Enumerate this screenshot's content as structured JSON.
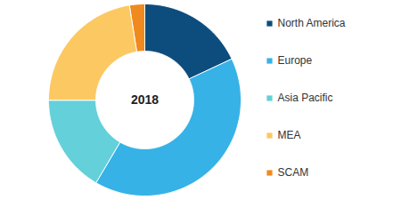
{
  "chart_data": {
    "type": "pie",
    "title": "2018",
    "categories": [
      "North America",
      "Europe",
      "Asia Pacific",
      "MEA",
      "SCAM"
    ],
    "values": [
      18,
      40.5,
      16.5,
      22.5,
      2.5
    ],
    "colors": [
      "#0d4d7e",
      "#36b2e6",
      "#63d0da",
      "#fcc862",
      "#f08a1e"
    ],
    "legend": "right"
  }
}
